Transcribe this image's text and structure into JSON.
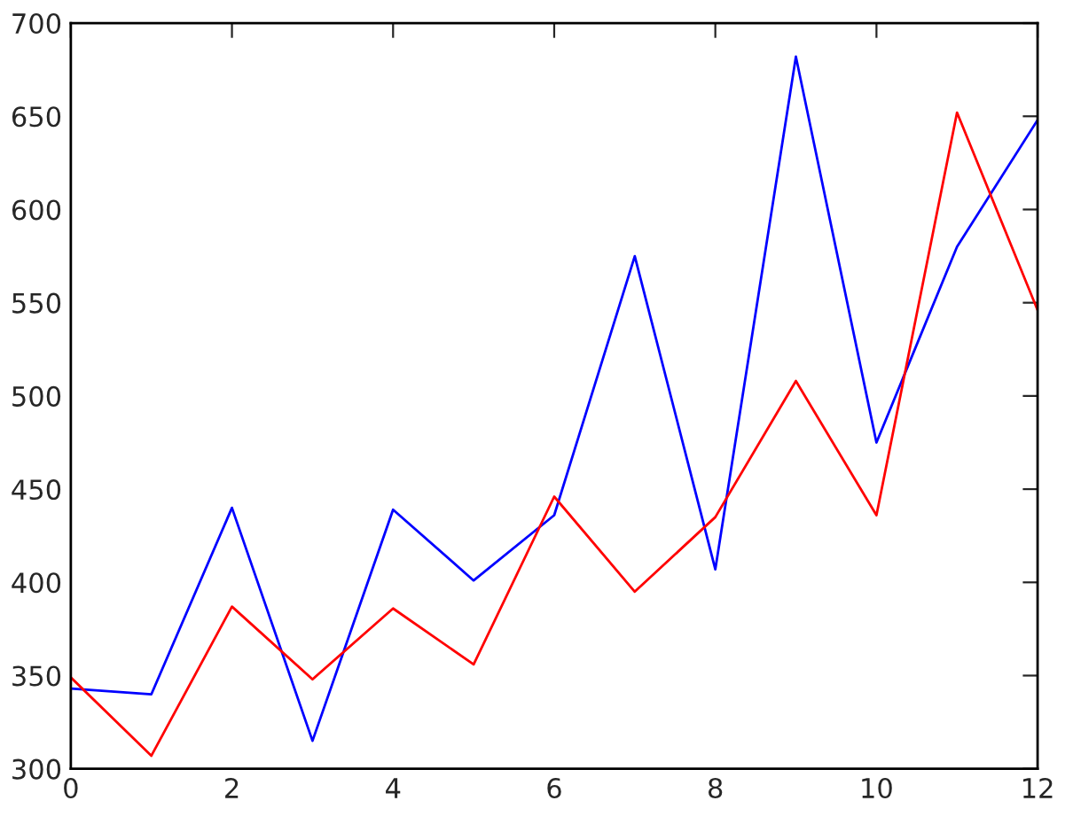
{
  "chart_data": {
    "type": "line",
    "x": [
      0,
      1,
      2,
      3,
      4,
      5,
      6,
      7,
      8,
      9,
      10,
      11,
      12
    ],
    "series": [
      {
        "color": "#0000ff",
        "values": [
          343,
          340,
          440,
          315,
          439,
          401,
          436,
          575,
          407,
          682,
          475,
          580,
          648
        ]
      },
      {
        "color": "#ff0000",
        "values": [
          349,
          307,
          387,
          348,
          386,
          356,
          446,
          395,
          435,
          508,
          436,
          652,
          546
        ]
      }
    ],
    "xlim": [
      0,
      12
    ],
    "xticks": [
      0,
      2,
      4,
      6,
      8,
      10,
      12
    ],
    "ylim": [
      300,
      700
    ],
    "yticks": [
      300,
      350,
      400,
      450,
      500,
      550,
      600,
      650,
      700
    ],
    "grid": false,
    "legend": false,
    "marker": "none",
    "line_style": "solid"
  }
}
